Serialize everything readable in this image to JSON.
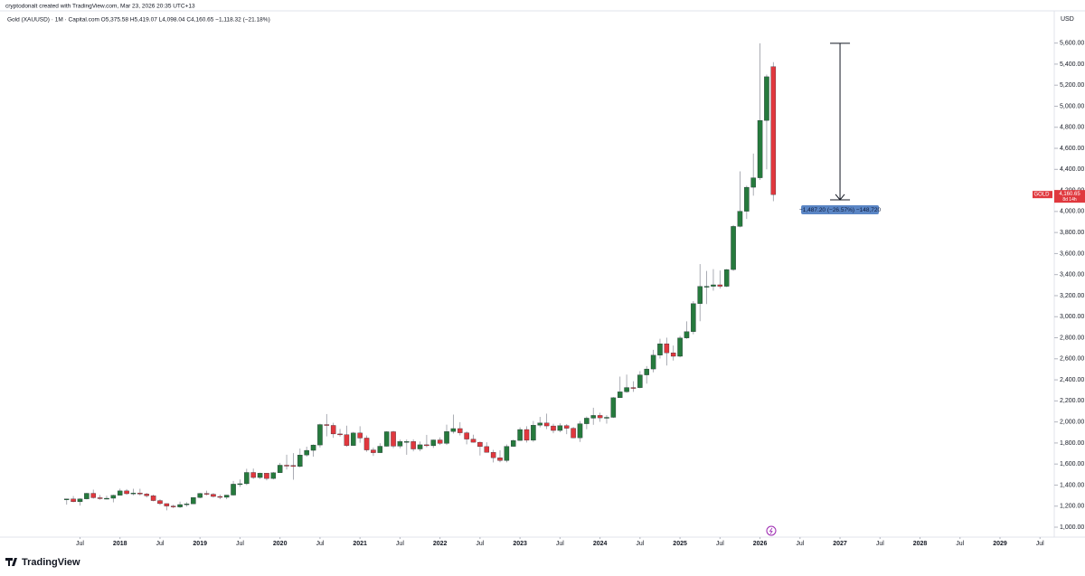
{
  "header": {
    "credit": "cryptodonalt created with TradingView.com, Mar 23, 2026 20:35 UTC+13",
    "legend": "Gold (XAUUSD) · 1M · Capital.com  O5,375.58 H5,419.07 L4,098.04 C4,160.65 −1,118.32 (−21.18%)",
    "currency": "USD"
  },
  "footer": {
    "brand": "TradingView"
  },
  "chart_data": {
    "type": "candlestick",
    "up_color": "#267a3d",
    "down_color": "#e0383e",
    "x": [
      "2017-05",
      "2017-06",
      "2017-07",
      "2017-08",
      "2017-09",
      "2017-10",
      "2017-11",
      "2017-12",
      "2018-01",
      "2018-02",
      "2018-03",
      "2018-04",
      "2018-05",
      "2018-06",
      "2018-07",
      "2018-08",
      "2018-09",
      "2018-10",
      "2018-11",
      "2018-12",
      "2019-01",
      "2019-02",
      "2019-03",
      "2019-04",
      "2019-05",
      "2019-06",
      "2019-07",
      "2019-08",
      "2019-09",
      "2019-10",
      "2019-11",
      "2019-12",
      "2020-01",
      "2020-02",
      "2020-03",
      "2020-04",
      "2020-05",
      "2020-06",
      "2020-07",
      "2020-08",
      "2020-09",
      "2020-10",
      "2020-11",
      "2020-12",
      "2021-01",
      "2021-02",
      "2021-03",
      "2021-04",
      "2021-05",
      "2021-06",
      "2021-07",
      "2021-08",
      "2021-09",
      "2021-10",
      "2021-11",
      "2021-12",
      "2022-01",
      "2022-02",
      "2022-03",
      "2022-04",
      "2022-05",
      "2022-06",
      "2022-07",
      "2022-08",
      "2022-09",
      "2022-10",
      "2022-11",
      "2022-12",
      "2023-01",
      "2023-02",
      "2023-03",
      "2023-04",
      "2023-05",
      "2023-06",
      "2023-07",
      "2023-08",
      "2023-09",
      "2023-10",
      "2023-11",
      "2023-12",
      "2024-01",
      "2024-02",
      "2024-03",
      "2024-04",
      "2024-05",
      "2024-06",
      "2024-07",
      "2024-08",
      "2024-09",
      "2024-10",
      "2024-11",
      "2024-12",
      "2025-01",
      "2025-02",
      "2025-03",
      "2025-04",
      "2025-05",
      "2025-06",
      "2025-07",
      "2025-08",
      "2025-09",
      "2025-10",
      "2025-11",
      "2025-12",
      "2026-01",
      "2026-02",
      "2026-03"
    ],
    "open": [
      1268,
      1268,
      1242,
      1269,
      1322,
      1280,
      1271,
      1275,
      1303,
      1345,
      1318,
      1325,
      1315,
      1298,
      1253,
      1224,
      1201,
      1192,
      1215,
      1222,
      1282,
      1321,
      1313,
      1292,
      1284,
      1305,
      1409,
      1413,
      1520,
      1472,
      1513,
      1463,
      1517,
      1589,
      1586,
      1577,
      1686,
      1730,
      1781,
      1975,
      1967,
      1886,
      1879,
      1776,
      1895,
      1847,
      1734,
      1708,
      1769,
      1907,
      1770,
      1814,
      1814,
      1743,
      1783,
      1774,
      1829,
      1796,
      1909,
      1937,
      1897,
      1837,
      1807,
      1766,
      1711,
      1660,
      1633,
      1768,
      1824,
      1928,
      1826,
      1969,
      1990,
      1962,
      1919,
      1965,
      1940,
      1849,
      1983,
      2036,
      2062,
      2039,
      2044,
      2230,
      2286,
      2327,
      2326,
      2447,
      2503,
      2634,
      2743,
      2657,
      2624,
      2798,
      2858,
      3124,
      3288,
      3289,
      3303,
      3289,
      3448,
      3858,
      4002,
      4230,
      4320,
      4865,
      5375.58
    ],
    "high": [
      1270,
      1296,
      1274,
      1326,
      1357,
      1306,
      1299,
      1309,
      1366,
      1362,
      1365,
      1365,
      1326,
      1309,
      1265,
      1225,
      1214,
      1243,
      1237,
      1284,
      1326,
      1347,
      1324,
      1310,
      1306,
      1439,
      1453,
      1555,
      1557,
      1518,
      1516,
      1525,
      1611,
      1689,
      1704,
      1747,
      1765,
      1786,
      1984,
      2075,
      1992,
      1933,
      1965,
      1906,
      1959,
      1871,
      1756,
      1798,
      1912,
      1916,
      1833,
      1834,
      1835,
      1814,
      1877,
      1832,
      1853,
      1974,
      2070,
      1998,
      1910,
      1879,
      1814,
      1807,
      1735,
      1730,
      1786,
      1833,
      1949,
      1959,
      2009,
      2048,
      2079,
      1983,
      1987,
      1980,
      1953,
      2009,
      2052,
      2135,
      2088,
      2065,
      2236,
      2431,
      2450,
      2387,
      2483,
      2531,
      2685,
      2790,
      2801,
      2726,
      2817,
      2956,
      3148,
      3500,
      3435,
      3452,
      3439,
      3453,
      3871,
      4381,
      4245,
      4550,
      5598,
      5300,
      5419.07
    ],
    "low": [
      1214,
      1236,
      1205,
      1264,
      1271,
      1261,
      1264,
      1236,
      1302,
      1307,
      1303,
      1301,
      1282,
      1246,
      1211,
      1160,
      1180,
      1183,
      1196,
      1221,
      1275,
      1302,
      1281,
      1266,
      1266,
      1301,
      1382,
      1400,
      1459,
      1459,
      1445,
      1454,
      1516,
      1548,
      1451,
      1567,
      1670,
      1670,
      1757,
      1863,
      1849,
      1860,
      1764,
      1775,
      1802,
      1717,
      1677,
      1705,
      1766,
      1751,
      1750,
      1688,
      1721,
      1722,
      1759,
      1753,
      1781,
      1781,
      1890,
      1872,
      1787,
      1805,
      1681,
      1709,
      1615,
      1617,
      1616,
      1765,
      1823,
      1805,
      1810,
      1949,
      1932,
      1893,
      1902,
      1884,
      1846,
      1810,
      1931,
      1973,
      2001,
      1984,
      2038,
      2228,
      2277,
      2286,
      2320,
      2364,
      2472,
      2603,
      2536,
      2583,
      2614,
      2789,
      2833,
      2957,
      3120,
      3247,
      3268,
      3281,
      3436,
      3850,
      3929,
      4150,
      4300,
      4400,
      4098.04
    ],
    "close": [
      1268,
      1242,
      1269,
      1322,
      1280,
      1271,
      1275,
      1303,
      1345,
      1318,
      1325,
      1315,
      1298,
      1253,
      1224,
      1201,
      1192,
      1215,
      1222,
      1282,
      1321,
      1313,
      1292,
      1284,
      1305,
      1409,
      1413,
      1520,
      1472,
      1513,
      1463,
      1517,
      1589,
      1586,
      1577,
      1686,
      1730,
      1781,
      1975,
      1967,
      1886,
      1879,
      1776,
      1895,
      1847,
      1734,
      1708,
      1769,
      1907,
      1770,
      1814,
      1814,
      1743,
      1783,
      1774,
      1829,
      1796,
      1909,
      1937,
      1897,
      1837,
      1807,
      1766,
      1711,
      1660,
      1633,
      1768,
      1824,
      1928,
      1826,
      1969,
      1990,
      1962,
      1919,
      1965,
      1940,
      1849,
      1983,
      2036,
      2062,
      2039,
      2044,
      2230,
      2286,
      2327,
      2326,
      2447,
      2503,
      2634,
      2743,
      2657,
      2624,
      2798,
      2858,
      3124,
      3288,
      3289,
      3303,
      3289,
      3448,
      3858,
      4002,
      4230,
      4320,
      4865,
      5280,
      4160.65
    ],
    "xlim": [
      "2016-07",
      "2029-09"
    ],
    "xticks": [
      {
        "value": "2017-07",
        "label": "Jul"
      },
      {
        "value": "2018-01",
        "label": "2018"
      },
      {
        "value": "2018-07",
        "label": "Jul"
      },
      {
        "value": "2019-01",
        "label": "2019"
      },
      {
        "value": "2019-07",
        "label": "Jul"
      },
      {
        "value": "2020-01",
        "label": "2020"
      },
      {
        "value": "2020-07",
        "label": "Jul"
      },
      {
        "value": "2021-01",
        "label": "2021"
      },
      {
        "value": "2021-07",
        "label": "Jul"
      },
      {
        "value": "2022-01",
        "label": "2022"
      },
      {
        "value": "2022-07",
        "label": "Jul"
      },
      {
        "value": "2023-01",
        "label": "2023"
      },
      {
        "value": "2023-07",
        "label": "Jul"
      },
      {
        "value": "2024-01",
        "label": "2024"
      },
      {
        "value": "2024-07",
        "label": "Jul"
      },
      {
        "value": "2025-01",
        "label": "2025"
      },
      {
        "value": "2025-07",
        "label": "Jul"
      },
      {
        "value": "2026-01",
        "label": "2026"
      },
      {
        "value": "2026-07",
        "label": "Jul"
      },
      {
        "value": "2027-01",
        "label": "2027"
      },
      {
        "value": "2027-07",
        "label": "Jul"
      },
      {
        "value": "2028-01",
        "label": "2028"
      },
      {
        "value": "2028-07",
        "label": "Jul"
      },
      {
        "value": "2029-01",
        "label": "2029"
      },
      {
        "value": "2029-07",
        "label": "Jul"
      }
    ],
    "ylim": [
      940,
      5700
    ],
    "yticks": [
      {
        "value": 1000,
        "label": "1,000.00"
      },
      {
        "value": 1200,
        "label": "1,200.00"
      },
      {
        "value": 1400,
        "label": "1,400.00"
      },
      {
        "value": 1600,
        "label": "1,600.00"
      },
      {
        "value": 1800,
        "label": "1,800.00"
      },
      {
        "value": 2000,
        "label": "2,000.00"
      },
      {
        "value": 2200,
        "label": "2,200.00"
      },
      {
        "value": 2400,
        "label": "2,400.00"
      },
      {
        "value": 2600,
        "label": "2,600.00"
      },
      {
        "value": 2800,
        "label": "2,800.00"
      },
      {
        "value": 3000,
        "label": "3,000.00"
      },
      {
        "value": 3200,
        "label": "3,200.00"
      },
      {
        "value": 3400,
        "label": "3,400.00"
      },
      {
        "value": 3600,
        "label": "3,600.00"
      },
      {
        "value": 3800,
        "label": "3,800.00"
      },
      {
        "value": 4000,
        "label": "4,000.00"
      },
      {
        "value": 4200,
        "label": "4,200.00"
      },
      {
        "value": 4400,
        "label": "4,400.00"
      },
      {
        "value": 4600,
        "label": "4,600.00"
      },
      {
        "value": 4800,
        "label": "4,800.00"
      },
      {
        "value": 5000,
        "label": "5,000.00"
      },
      {
        "value": 5200,
        "label": "5,200.00"
      },
      {
        "value": 5400,
        "label": "5,400.00"
      },
      {
        "value": 5600,
        "label": "5,600.00"
      }
    ],
    "price_label": {
      "symbol": "GOLD",
      "value": 4160.65,
      "label": "4,160.65",
      "countdown": "8d 14h"
    },
    "measure": {
      "x": "2027-01",
      "from": 5598,
      "to": 4110.8,
      "label": "−1,487.20 (−26.57%) −148,720"
    }
  }
}
